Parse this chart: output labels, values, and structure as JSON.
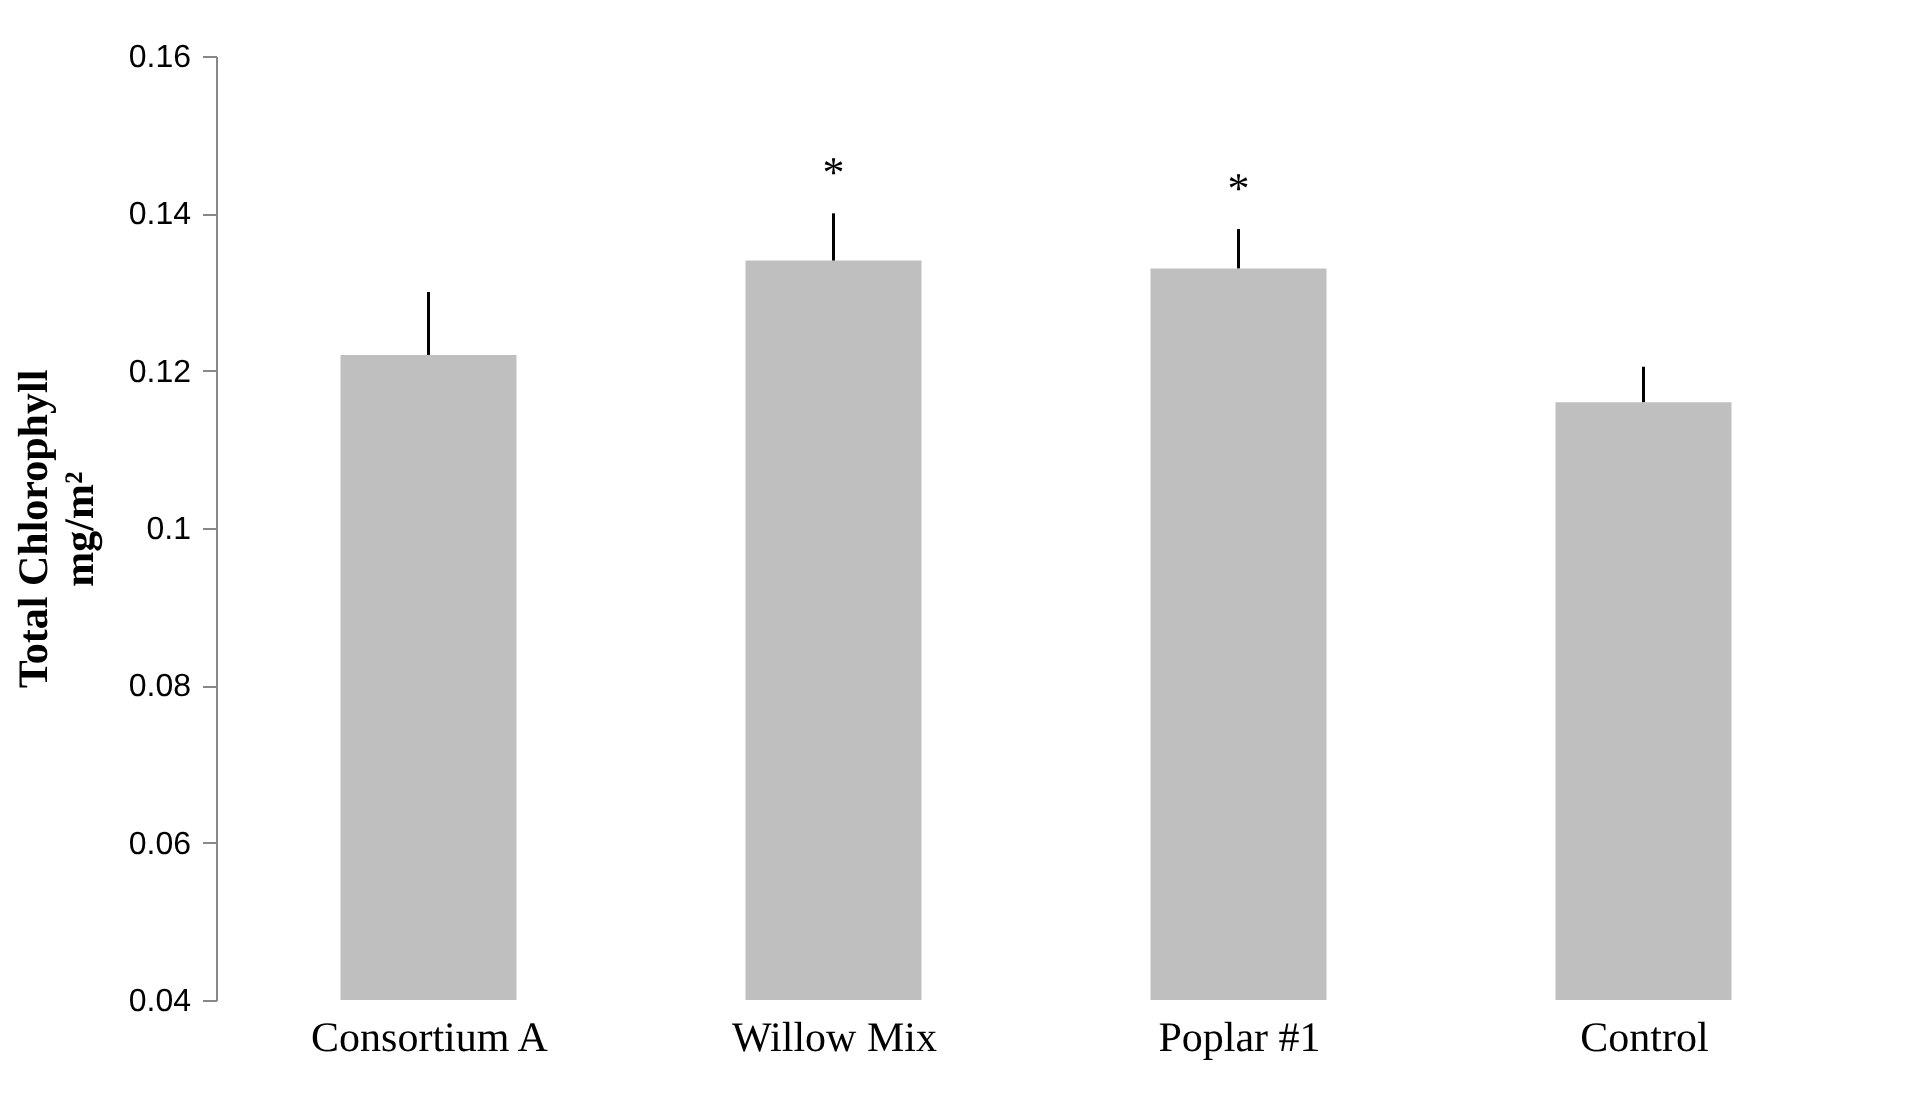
{
  "chart_data": {
    "type": "bar",
    "ylabel": "Total Chlorophyll\nmg/m²",
    "categories": [
      "Consortium A",
      "Willow Mix",
      "Poplar #1",
      "Control"
    ],
    "values": [
      0.122,
      0.134,
      0.133,
      0.116
    ],
    "errors": [
      [
        0.122,
        0.13
      ],
      [
        0.134,
        0.14
      ],
      [
        0.133,
        0.138
      ],
      [
        0.116,
        0.1205
      ]
    ],
    "color": "#bfbfbf",
    "ylim": [
      0.04,
      0.16
    ],
    "yticks": [
      0.04,
      0.06,
      0.08,
      {
        "value": 0.1,
        "label": "0.1"
      },
      0.12,
      0.14,
      0.16
    ],
    "grid": false,
    "annotations": [
      {
        "text": "*",
        "x": "Willow Mix",
        "y": 0.14
      },
      {
        "text": "*",
        "x": "Poplar #1",
        "y": 0.138
      }
    ]
  }
}
